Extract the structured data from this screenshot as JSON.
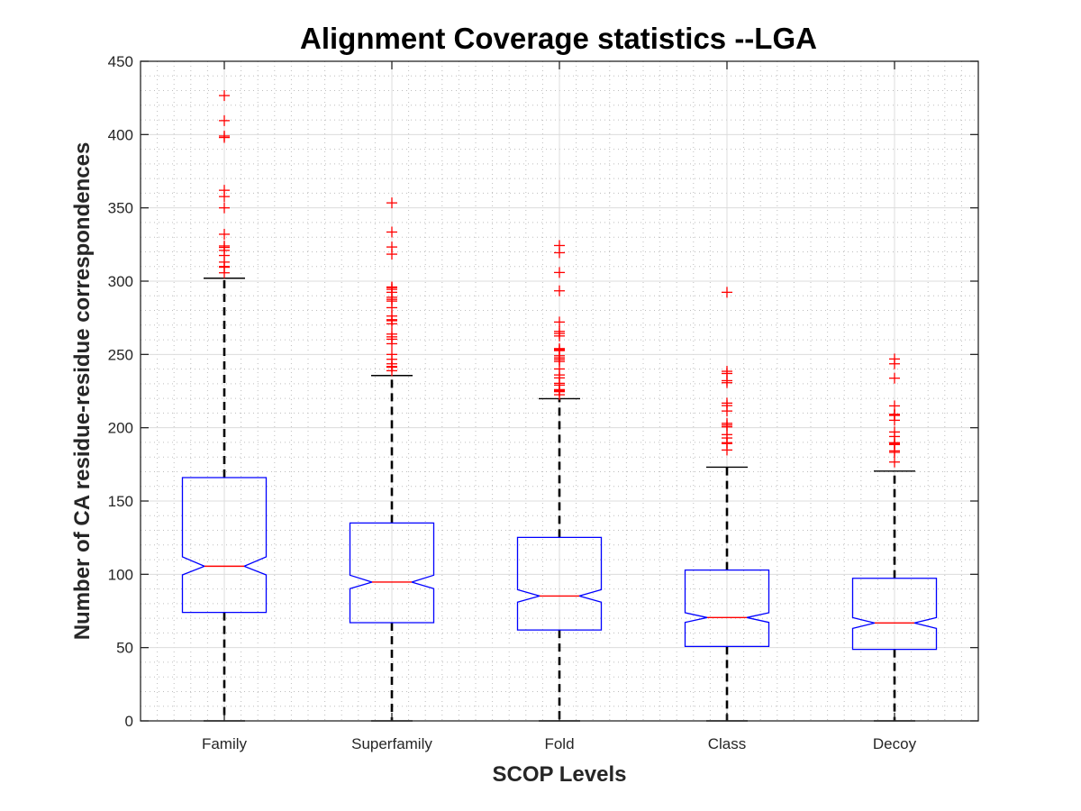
{
  "chart_data": {
    "type": "boxplot",
    "title": "Alignment Coverage statistics --LGA",
    "xlabel": "SCOP Levels",
    "ylabel": "Number of CA residue-residue correspondences",
    "ylim": [
      0,
      450
    ],
    "yticks": [
      0,
      50,
      100,
      150,
      200,
      250,
      300,
      350,
      400,
      450
    ],
    "ytick_labels": [
      "0",
      "50",
      "100",
      "150",
      "200",
      "250",
      "300",
      "350",
      "400",
      "450"
    ],
    "grid": true,
    "minor_grid": true,
    "notched": true,
    "categories": [
      "Family",
      "Superfamily",
      "Fold",
      "Class",
      "Decoy"
    ],
    "colors": {
      "box": "#0000ff",
      "median": "#ff0000",
      "whisker": "#000000",
      "outlier": "#ff0000",
      "major_grid": "#dcdcdc",
      "minor_grid": "#bdbdbd",
      "axis": "#262626"
    },
    "series": [
      {
        "name": "Family",
        "whisker_low": 0,
        "q1": 74,
        "median": 105.5,
        "q3": 166,
        "whisker_high": 302,
        "notch_low": 99.6,
        "notch_high": 111.9,
        "outliers": [
          426.6,
          409.5,
          399,
          398,
          362,
          357.7,
          350,
          332,
          324,
          323,
          321,
          317.5,
          313,
          310,
          309.5,
          305.7
        ]
      },
      {
        "name": "Superfamily",
        "whisker_low": 0,
        "q1": 67,
        "median": 94.7,
        "q3": 135,
        "whisker_high": 235.6,
        "notch_low": 90.2,
        "notch_high": 99.4,
        "outliers": [
          353.4,
          333.5,
          323.3,
          318.4,
          296,
          295.6,
          294.4,
          292.4,
          289,
          287.6,
          286.4,
          281.9,
          276.2,
          273.7,
          273,
          270.9,
          263.9,
          262,
          260.4,
          257.3,
          250,
          246.7,
          243.6,
          241.8,
          241.3,
          238.9
        ]
      },
      {
        "name": "Fold",
        "whisker_low": 0,
        "q1": 62,
        "median": 85.2,
        "q3": 125.2,
        "whisker_high": 219.8,
        "notch_low": 81,
        "notch_high": 89.5,
        "outliers": [
          324.3,
          319.4,
          305.9,
          293.4,
          272.1,
          265.7,
          264.3,
          262.6,
          254,
          253.2,
          252.6,
          249.1,
          247.7,
          246.5,
          245.2,
          240.1,
          236,
          234,
          230.3,
          229.1,
          226,
          225.2,
          224.6,
          222.5
        ]
      },
      {
        "name": "Class",
        "whisker_low": 0,
        "q1": 50.8,
        "median": 70.5,
        "q3": 102.9,
        "whisker_high": 173.1,
        "notch_low": 67.2,
        "notch_high": 73.8,
        "outliers": [
          292.4,
          238.5,
          237,
          232.1,
          230.7,
          216.8,
          215.1,
          211.4,
          203,
          201.8,
          200.6,
          195.3,
          193,
          189.8,
          189.2,
          184.8
        ]
      },
      {
        "name": "Decoy",
        "whisker_low": 0,
        "q1": 48.8,
        "median": 66.8,
        "q3": 97.3,
        "whisker_high": 170.4,
        "notch_low": 63.1,
        "notch_high": 70.5,
        "outliers": [
          246.9,
          243.6,
          233.8,
          214.9,
          209.2,
          208.8,
          208.4,
          205.1,
          197.1,
          194,
          189.8,
          189.2,
          188.5,
          184.2,
          183.2,
          176.6
        ]
      }
    ]
  }
}
